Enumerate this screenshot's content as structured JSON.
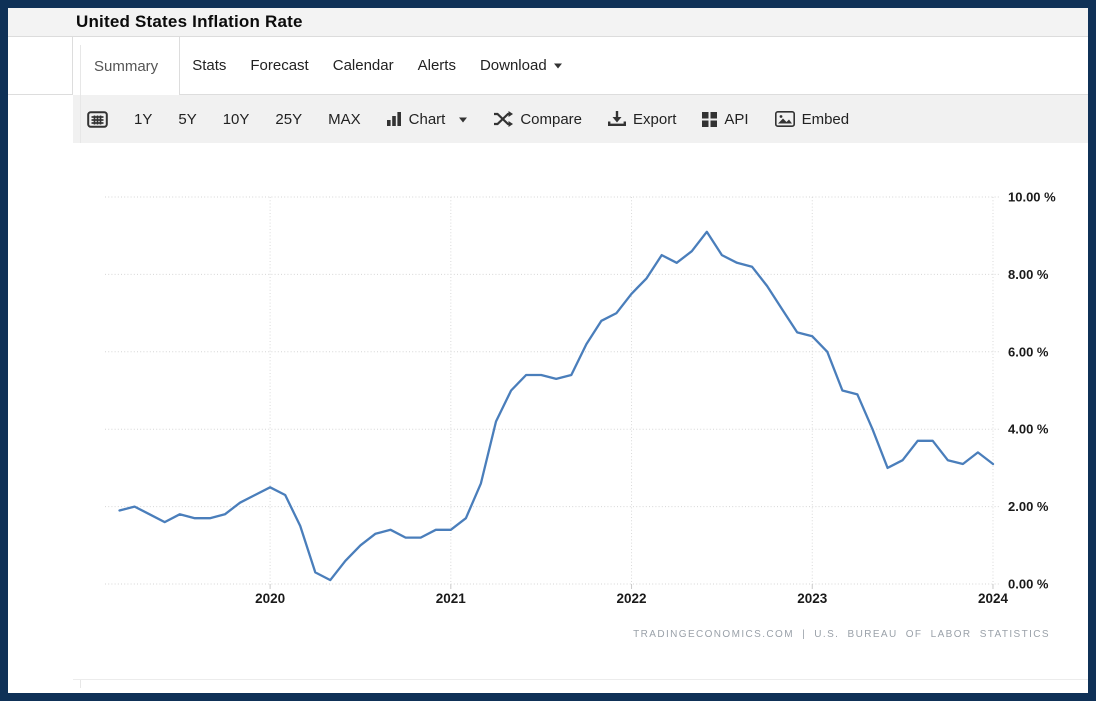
{
  "window": {
    "title": "United States Inflation Rate"
  },
  "tabs": [
    {
      "label": "Summary",
      "active": true
    },
    {
      "label": "Stats"
    },
    {
      "label": "Forecast"
    },
    {
      "label": "Calendar"
    },
    {
      "label": "Alerts"
    },
    {
      "label": "Download",
      "has_menu": true
    }
  ],
  "toolbar": {
    "calendar_icon": "calendar-grid-icon",
    "ranges": [
      "1Y",
      "5Y",
      "10Y",
      "25Y",
      "MAX"
    ],
    "chart_label": "Chart",
    "compare_label": "Compare",
    "export_label": "Export",
    "api_label": "API",
    "embed_label": "Embed"
  },
  "chart_data": {
    "type": "line",
    "title": "United States Inflation Rate",
    "unit": "%",
    "legend": "none",
    "grid": "dotted",
    "line_color": "#4a7ebb",
    "ylim": [
      0,
      10
    ],
    "yticks": [
      {
        "value": 0,
        "label": "0.00 %"
      },
      {
        "value": 2,
        "label": "2.00 %"
      },
      {
        "value": 4,
        "label": "4.00 %"
      },
      {
        "value": 6,
        "label": "6.00 %"
      },
      {
        "value": 8,
        "label": "8.00 %"
      },
      {
        "value": 10,
        "label": "10.00 %"
      }
    ],
    "xticks": [
      {
        "month": "2020-01",
        "label": "2020"
      },
      {
        "month": "2021-01",
        "label": "2021"
      },
      {
        "month": "2022-01",
        "label": "2022"
      },
      {
        "month": "2023-01",
        "label": "2023"
      },
      {
        "month": "2024-01",
        "label": "2024"
      }
    ],
    "x": [
      "2019-03",
      "2019-04",
      "2019-05",
      "2019-06",
      "2019-07",
      "2019-08",
      "2019-09",
      "2019-10",
      "2019-11",
      "2019-12",
      "2020-01",
      "2020-02",
      "2020-03",
      "2020-04",
      "2020-05",
      "2020-06",
      "2020-07",
      "2020-08",
      "2020-09",
      "2020-10",
      "2020-11",
      "2020-12",
      "2021-01",
      "2021-02",
      "2021-03",
      "2021-04",
      "2021-05",
      "2021-06",
      "2021-07",
      "2021-08",
      "2021-09",
      "2021-10",
      "2021-11",
      "2021-12",
      "2022-01",
      "2022-02",
      "2022-03",
      "2022-04",
      "2022-05",
      "2022-06",
      "2022-07",
      "2022-08",
      "2022-09",
      "2022-10",
      "2022-11",
      "2022-12",
      "2023-01",
      "2023-02",
      "2023-03",
      "2023-04",
      "2023-05",
      "2023-06",
      "2023-07",
      "2023-08",
      "2023-09",
      "2023-10",
      "2023-11",
      "2023-12",
      "2024-01"
    ],
    "values": [
      1.9,
      2.0,
      1.8,
      1.6,
      1.8,
      1.7,
      1.7,
      1.8,
      2.1,
      2.3,
      2.5,
      2.3,
      1.5,
      0.3,
      0.1,
      0.6,
      1.0,
      1.3,
      1.4,
      1.2,
      1.2,
      1.4,
      1.4,
      1.7,
      2.6,
      4.2,
      5.0,
      5.4,
      5.4,
      5.3,
      5.4,
      6.2,
      6.8,
      7.0,
      7.5,
      7.9,
      8.5,
      8.3,
      8.6,
      9.1,
      8.5,
      8.3,
      8.2,
      7.7,
      7.1,
      6.5,
      6.4,
      6.0,
      5.0,
      4.9,
      4.0,
      3.0,
      3.2,
      3.7,
      3.7,
      3.2,
      3.1,
      3.4,
      3.1
    ],
    "attribution": "TRADINGECONOMICS.COM | U.S. BUREAU OF LABOR STATISTICS"
  }
}
